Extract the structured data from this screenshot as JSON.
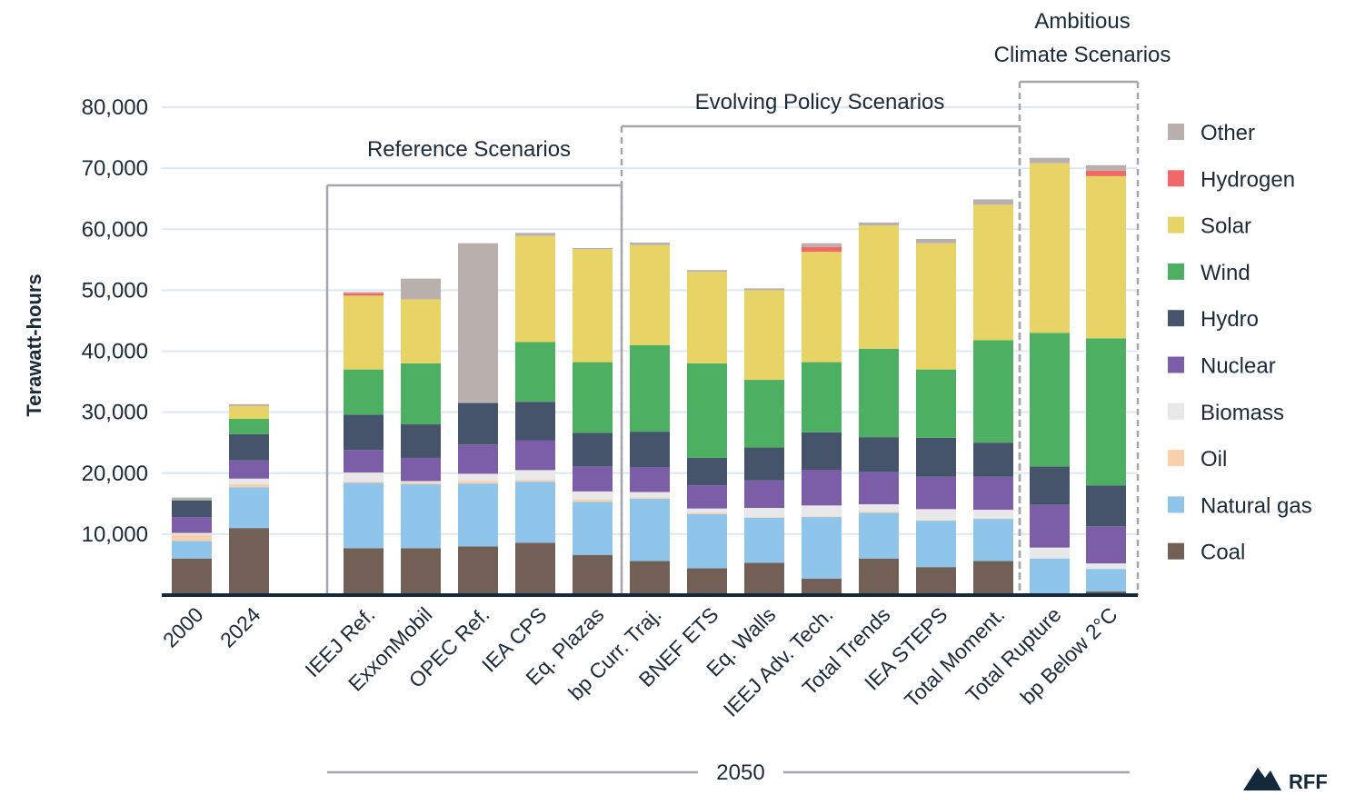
{
  "chart_data": {
    "type": "stacked-bar",
    "ylabel": "Terawatt-hours",
    "ylim": [
      0,
      80000
    ],
    "yticks": [
      10000,
      20000,
      30000,
      40000,
      50000,
      60000,
      70000,
      80000
    ],
    "ytick_labels": [
      "10,000",
      "20,000",
      "30,000",
      "40,000",
      "50,000",
      "60,000",
      "70,000",
      "80,000"
    ],
    "grid": true,
    "categories": [
      "2000",
      "2024",
      "IEEJ Ref.",
      "ExxonMobil",
      "OPEC Ref.",
      "IEA CPS",
      "Eq. Plazas",
      "bp Curr. Traj.",
      "BNEF ETS",
      "Eq. Walls",
      "IEEJ Adv. Tech.",
      "Total Trends",
      "IEA STEPS",
      "Total Moment.",
      "Total Rupture",
      "bp Below 2°C"
    ],
    "series": [
      {
        "name": "Coal",
        "color": "#726056",
        "values": [
          6000,
          11000,
          7700,
          7700,
          8000,
          8600,
          6600,
          5600,
          4400,
          5300,
          2700,
          6000,
          4600,
          5600,
          0,
          600
        ]
      },
      {
        "name": "Natural gas",
        "color": "#8fc5ea",
        "values": [
          2900,
          6700,
          10700,
          10500,
          10300,
          10000,
          8700,
          10200,
          8900,
          7400,
          10100,
          7500,
          7600,
          6900,
          6000,
          3700
        ]
      },
      {
        "name": "Oil",
        "color": "#f9d0ac",
        "values": [
          1000,
          500,
          200,
          300,
          400,
          300,
          400,
          200,
          200,
          100,
          100,
          200,
          100,
          100,
          0,
          0
        ]
      },
      {
        "name": "Biomass",
        "color": "#e8e8e8",
        "values": [
          300,
          900,
          1500,
          200,
          1200,
          1600,
          1300,
          900,
          700,
          1500,
          1800,
          1200,
          1800,
          1400,
          1800,
          900
        ]
      },
      {
        "name": "Nuclear",
        "color": "#7b5ea7",
        "values": [
          2600,
          3000,
          3700,
          3800,
          4800,
          4900,
          4100,
          4100,
          3800,
          4500,
          5800,
          5300,
          5300,
          5400,
          7000,
          6100
        ]
      },
      {
        "name": "Hydro",
        "color": "#45546a",
        "values": [
          2700,
          4300,
          5800,
          5500,
          6800,
          6300,
          5500,
          5800,
          4500,
          5400,
          6200,
          5700,
          6400,
          5600,
          6300,
          6700
        ]
      },
      {
        "name": "Wind",
        "color": "#4caf62",
        "values": [
          100,
          2500,
          7400,
          10000,
          0,
          9800,
          11600,
          14200,
          15500,
          11100,
          11500,
          14500,
          11200,
          16800,
          21900,
          24100
        ]
      },
      {
        "name": "Solar",
        "color": "#e8d466",
        "values": [
          0,
          2100,
          12100,
          10500,
          0,
          17400,
          18500,
          16400,
          15000,
          14700,
          18100,
          20200,
          20700,
          22200,
          27800,
          26600
        ]
      },
      {
        "name": "Hydrogen",
        "color": "#f26767",
        "values": [
          0,
          0,
          400,
          0,
          0,
          0,
          0,
          0,
          0,
          0,
          800,
          0,
          0,
          0,
          0,
          900
        ]
      },
      {
        "name": "Other",
        "color": "#b9b0ae",
        "values": [
          400,
          300,
          200,
          3400,
          26200,
          500,
          200,
          400,
          300,
          300,
          600,
          500,
          700,
          900,
          900,
          900
        ]
      }
    ],
    "groups": [
      {
        "label": "Reference Scenarios",
        "from": 2,
        "to": 6
      },
      {
        "label": "Evolving Policy Scenarios",
        "from": 7,
        "to": 13
      },
      {
        "label": "Ambitious Climate Scenarios",
        "line1": "Ambitious",
        "line2": "Climate Scenarios",
        "from": 14,
        "to": 15
      }
    ],
    "footer_label": "2050",
    "legend_position": "right",
    "legend_order": [
      "Other",
      "Hydrogen",
      "Solar",
      "Wind",
      "Hydro",
      "Nuclear",
      "Biomass",
      "Oil",
      "Natural gas",
      "Coal"
    ]
  },
  "logo": {
    "text": "RFF",
    "color": "#14283c"
  }
}
